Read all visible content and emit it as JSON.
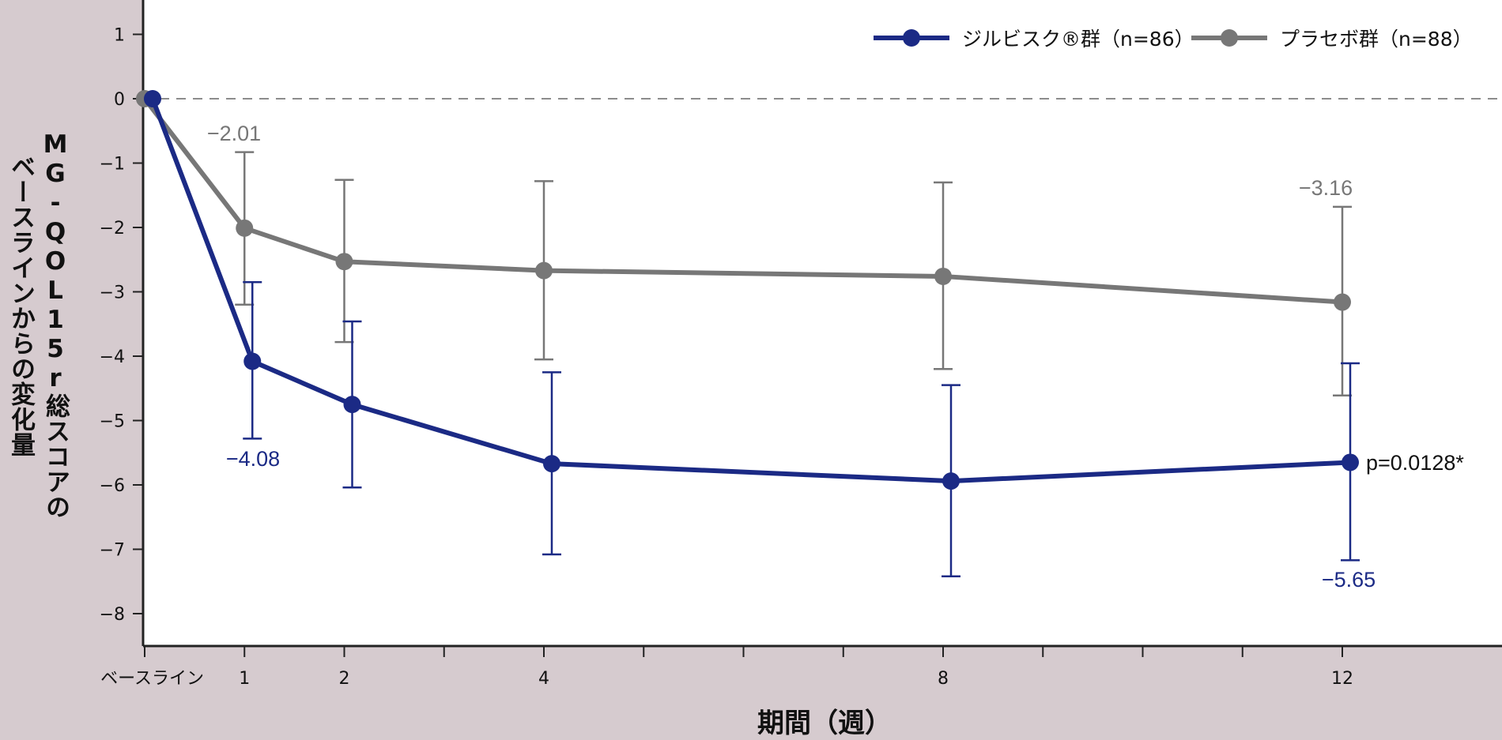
{
  "chart_data": {
    "type": "line",
    "title": "",
    "xlabel": "期間（週）",
    "ylabel": "MG-QOL15r総スコアのベースラインからの変化量",
    "ylabel_lines": [
      "MG-QOL15r総スコアの",
      "ベースラインからの変化量"
    ],
    "x": [
      0,
      1,
      2,
      4,
      8,
      12
    ],
    "x_tick_labels": [
      "ベースライン",
      "1",
      "2",
      "4",
      "8",
      "12"
    ],
    "minor_x_ticks": [
      0,
      1,
      2,
      3,
      4,
      5,
      6,
      7,
      8,
      9,
      10,
      11,
      12
    ],
    "ylim": [
      -8.5,
      1.3
    ],
    "y_ticks": [
      1,
      0,
      -1,
      -2,
      -3,
      -4,
      -5,
      -6,
      -7,
      -8
    ],
    "y_tick_labels": [
      "1",
      "0",
      "−1",
      "−2",
      "−3",
      "−4",
      "−5",
      "−6",
      "−7",
      "−8"
    ],
    "reference_line": {
      "y": 0,
      "style": "dashed",
      "color": "#8c8c8c"
    },
    "grid": false,
    "legend_position": "top-right",
    "series": [
      {
        "name": "ジルビスク®群（n=86）",
        "color": "#1b2a85",
        "values": [
          0,
          -4.08,
          -4.75,
          -5.67,
          -5.94,
          -5.65
        ],
        "error_upper": [
          null,
          -2.85,
          -3.46,
          -4.25,
          -4.45,
          -4.11
        ],
        "error_lower": [
          null,
          -5.28,
          -6.04,
          -7.08,
          -7.42,
          -7.17
        ]
      },
      {
        "name": "プラセボ群（n=88）",
        "color": "#777777",
        "values": [
          0,
          -2.01,
          -2.53,
          -2.67,
          -2.76,
          -3.16
        ],
        "error_upper": [
          null,
          -0.83,
          -1.26,
          -1.28,
          -1.3,
          -1.68
        ],
        "error_lower": [
          null,
          -3.2,
          -3.78,
          -4.05,
          -4.2,
          -4.61
        ]
      }
    ],
    "annotations": [
      {
        "text": "−2.01",
        "series": "placebo",
        "x": 1
      },
      {
        "text": "−4.08",
        "series": "zilbysq",
        "x": 1
      },
      {
        "text": "−3.16",
        "series": "placebo",
        "x": 12
      },
      {
        "text": "−5.65",
        "series": "zilbysq",
        "x": 12
      },
      {
        "text": "p=0.0128*",
        "series": "zilbysq",
        "x": 12
      }
    ]
  },
  "legend": {
    "zilbysq_label": "ジルビスク®群（n=86）",
    "placebo_label": "プラセボ群（n=88）"
  },
  "axes": {
    "xlabel": "期間（週）",
    "ylabel_line1": "MG-QOL15r総スコアの",
    "ylabel_line2": "ベースラインからの変化量"
  }
}
